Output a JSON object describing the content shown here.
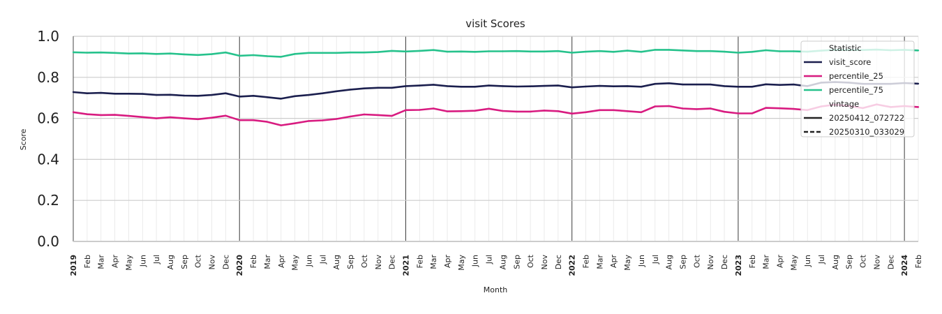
{
  "chart_data": {
    "type": "line",
    "title": "visit Scores",
    "xlabel": "Month",
    "ylabel": "Score",
    "ylim": [
      0,
      1
    ],
    "yticks": [
      "0.0",
      "0.2",
      "0.4",
      "0.6",
      "0.8",
      "1.0"
    ],
    "x_start": "2019-01",
    "x_end": "2024-02",
    "month_labels": [
      "2019",
      "Feb",
      "Mar",
      "Apr",
      "May",
      "Jun",
      "Jul",
      "Aug",
      "Sep",
      "Oct",
      "Nov",
      "Dec",
      "2020",
      "Feb",
      "Mar",
      "Apr",
      "May",
      "Jun",
      "Jul",
      "Aug",
      "Sep",
      "Oct",
      "Nov",
      "Dec",
      "2021",
      "Feb",
      "Mar",
      "Apr",
      "May",
      "Jun",
      "Jul",
      "Aug",
      "Sep",
      "Oct",
      "Nov",
      "Dec",
      "2022",
      "Feb",
      "Mar",
      "Apr",
      "May",
      "Jun",
      "Jul",
      "Aug",
      "Sep",
      "Oct",
      "Nov",
      "Dec",
      "2023",
      "Feb",
      "Mar",
      "Apr",
      "May",
      "Jun",
      "Jul",
      "Aug",
      "Sep",
      "Oct",
      "Nov",
      "Dec",
      "2024",
      "Feb"
    ],
    "grid": true,
    "legend_position": "top-right",
    "legend": {
      "hue_title": "Statistic",
      "style_title": "vintage",
      "hue_entries": [
        {
          "name": "visit_score",
          "color": "#1b1f4e"
        },
        {
          "name": "percentile_25",
          "color": "#d81b80"
        },
        {
          "name": "percentile_75",
          "color": "#26c28c"
        }
      ],
      "style_entries": [
        {
          "name": "20250412_072722",
          "dash": "solid"
        },
        {
          "name": "20250310_033029",
          "dash": "dashed"
        }
      ]
    },
    "series": [
      {
        "name": "visit_score",
        "vintage": "20250412_072722",
        "color": "#1b1f4e",
        "values": [
          0.728,
          0.722,
          0.724,
          0.72,
          0.72,
          0.719,
          0.714,
          0.715,
          0.711,
          0.71,
          0.714,
          0.722,
          0.706,
          0.71,
          0.703,
          0.696,
          0.708,
          0.714,
          0.722,
          0.732,
          0.74,
          0.746,
          0.749,
          0.749,
          0.757,
          0.76,
          0.764,
          0.757,
          0.754,
          0.754,
          0.76,
          0.757,
          0.755,
          0.756,
          0.758,
          0.76,
          0.751,
          0.755,
          0.758,
          0.756,
          0.757,
          0.754,
          0.768,
          0.771,
          0.765,
          0.765,
          0.765,
          0.757,
          0.754,
          0.754,
          0.766,
          0.763,
          0.765,
          0.757,
          0.774,
          0.777,
          0.774,
          0.768,
          0.768,
          0.768,
          0.772,
          0.769
        ]
      },
      {
        "name": "percentile_25",
        "vintage": "20250412_072722",
        "color": "#d81b80",
        "values": [
          0.63,
          0.62,
          0.616,
          0.617,
          0.612,
          0.606,
          0.6,
          0.605,
          0.6,
          0.596,
          0.603,
          0.613,
          0.591,
          0.591,
          0.583,
          0.566,
          0.576,
          0.587,
          0.59,
          0.597,
          0.609,
          0.619,
          0.616,
          0.612,
          0.64,
          0.641,
          0.648,
          0.634,
          0.635,
          0.637,
          0.647,
          0.636,
          0.633,
          0.633,
          0.638,
          0.635,
          0.623,
          0.63,
          0.64,
          0.64,
          0.635,
          0.63,
          0.658,
          0.66,
          0.648,
          0.645,
          0.648,
          0.632,
          0.624,
          0.624,
          0.651,
          0.649,
          0.646,
          0.64,
          0.658,
          0.667,
          0.66,
          0.65,
          0.668,
          0.655,
          0.66,
          0.655
        ]
      },
      {
        "name": "percentile_75",
        "vintage": "20250412_072722",
        "color": "#26c28c",
        "values": [
          0.922,
          0.92,
          0.921,
          0.919,
          0.916,
          0.917,
          0.914,
          0.916,
          0.912,
          0.909,
          0.913,
          0.921,
          0.905,
          0.908,
          0.903,
          0.9,
          0.914,
          0.919,
          0.919,
          0.919,
          0.921,
          0.921,
          0.923,
          0.929,
          0.926,
          0.929,
          0.933,
          0.925,
          0.926,
          0.924,
          0.927,
          0.927,
          0.928,
          0.926,
          0.926,
          0.928,
          0.92,
          0.925,
          0.928,
          0.924,
          0.93,
          0.924,
          0.934,
          0.934,
          0.931,
          0.928,
          0.928,
          0.925,
          0.92,
          0.924,
          0.932,
          0.927,
          0.927,
          0.925,
          0.93,
          0.934,
          0.933,
          0.933,
          0.935,
          0.932,
          0.934,
          0.931
        ]
      }
    ]
  }
}
